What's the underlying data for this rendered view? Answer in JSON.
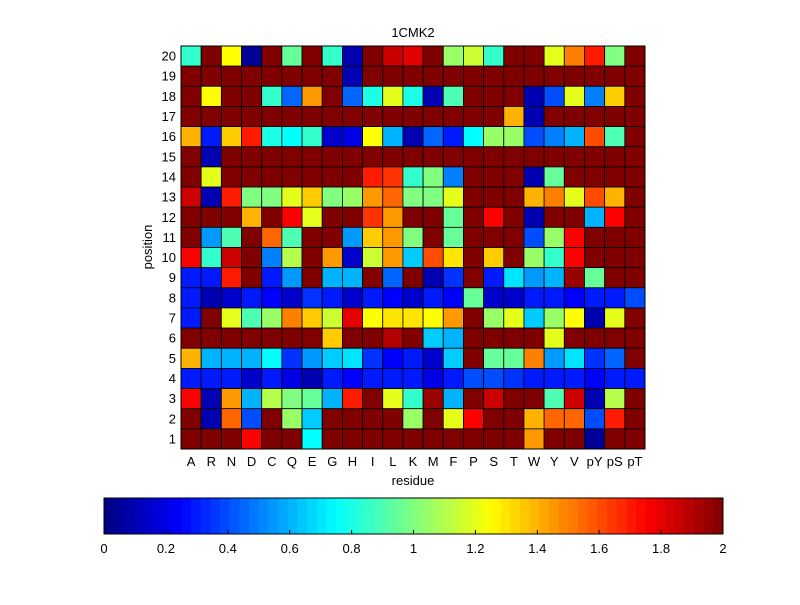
{
  "chart_data": {
    "type": "heatmap",
    "title": "1CMK2",
    "xlabel": "residue",
    "ylabel": "position",
    "x_categories": [
      "A",
      "R",
      "N",
      "D",
      "C",
      "Q",
      "E",
      "G",
      "H",
      "I",
      "L",
      "K",
      "M",
      "F",
      "P",
      "S",
      "T",
      "W",
      "Y",
      "V",
      "pY",
      "pS",
      "pT"
    ],
    "y_categories": [
      20,
      19,
      18,
      17,
      16,
      15,
      14,
      13,
      12,
      11,
      10,
      9,
      8,
      7,
      6,
      5,
      4,
      3,
      2,
      1
    ],
    "colorbar": {
      "range": [
        0,
        2
      ],
      "ticks": [
        "0",
        "0.2",
        "0.4",
        "0.6",
        "0.8",
        "1",
        "1.2",
        "1.4",
        "1.6",
        "1.8",
        "2"
      ],
      "colormap": "jet",
      "orientation": "horizontal"
    },
    "values": [
      [
        0.85,
        2,
        1.25,
        0.05,
        2,
        0.95,
        2,
        0.85,
        0.1,
        2,
        1.85,
        1.8,
        2,
        1.05,
        1.15,
        0.85,
        2,
        2,
        1.2,
        1.5,
        1.7,
        1.0,
        2
      ],
      [
        2,
        2,
        2,
        2,
        2,
        2,
        2,
        2,
        0.1,
        2,
        2,
        2,
        2,
        2,
        2,
        2,
        2,
        2,
        2,
        2,
        2,
        2,
        2
      ],
      [
        2,
        1.25,
        2,
        2,
        0.85,
        0.45,
        1.45,
        2,
        0.45,
        0.8,
        1.2,
        0.8,
        0.1,
        0.9,
        2,
        2,
        2,
        0.1,
        0.4,
        1.2,
        0.5,
        1.35,
        2
      ],
      [
        2,
        2,
        2,
        2,
        2,
        2,
        2,
        2,
        2,
        2,
        2,
        2,
        2,
        2,
        2,
        2,
        1.4,
        0.1,
        2,
        2,
        2,
        2,
        2
      ],
      [
        1.4,
        0.3,
        1.35,
        1.7,
        0.8,
        0.75,
        0.85,
        0.15,
        0.2,
        1.25,
        0.6,
        0.1,
        0.45,
        0.3,
        0.75,
        1.05,
        1.05,
        0.4,
        0.5,
        0.6,
        1.6,
        0.9,
        2
      ],
      [
        2,
        0.1,
        2,
        2,
        2,
        2,
        2,
        2,
        2,
        2,
        2,
        2,
        2,
        2,
        2,
        2,
        2,
        2,
        2,
        2,
        2,
        2,
        2
      ],
      [
        2,
        1.2,
        2,
        2,
        2,
        2,
        2,
        2,
        2,
        1.7,
        1.65,
        0.85,
        1.0,
        0.5,
        2,
        2,
        2,
        0.1,
        0.95,
        2,
        2,
        2,
        2
      ],
      [
        1.85,
        0.1,
        1.7,
        1.0,
        1.0,
        1.2,
        1.35,
        1.0,
        1.05,
        1.45,
        1.55,
        1.0,
        1.0,
        1.2,
        2,
        2,
        2,
        1.4,
        1.5,
        1.2,
        1.6,
        1.4,
        2
      ],
      [
        2,
        2,
        2,
        1.4,
        2,
        1.75,
        1.2,
        2,
        2,
        1.65,
        1.45,
        2,
        2,
        0.95,
        2,
        1.75,
        2,
        0.1,
        2,
        2,
        0.6,
        1.75,
        2
      ],
      [
        2,
        0.55,
        0.9,
        2,
        1.55,
        0.9,
        2,
        2,
        0.55,
        1.35,
        1.45,
        1.0,
        2,
        0.95,
        2,
        2,
        2,
        0.4,
        1.05,
        1.75,
        2,
        2,
        2
      ],
      [
        1.75,
        0.85,
        1.85,
        2,
        0.5,
        1.1,
        2,
        1.45,
        0.15,
        1.15,
        1.45,
        0.65,
        1.6,
        1.3,
        2,
        1.35,
        2,
        1.05,
        0.85,
        1.75,
        2,
        2,
        2
      ],
      [
        0.3,
        0.3,
        1.7,
        2,
        0.3,
        0.55,
        2,
        0.6,
        0.6,
        2,
        0.45,
        2,
        0.1,
        0.35,
        2,
        0.3,
        0.7,
        0.55,
        0.6,
        1.95,
        0.95,
        2,
        2
      ],
      [
        0.3,
        0.1,
        0.15,
        0.3,
        0.25,
        0.15,
        0.35,
        0.3,
        0.15,
        0.3,
        0.25,
        0.15,
        0.3,
        0.25,
        0.95,
        0.15,
        0.15,
        0.3,
        0.3,
        0.25,
        0.3,
        0.3,
        0.4
      ],
      [
        0.3,
        2,
        1.2,
        0.9,
        1.05,
        1.5,
        1.35,
        1.15,
        1.8,
        1.25,
        1.3,
        1.3,
        1.25,
        1.45,
        2,
        1.05,
        1.2,
        0.65,
        1.05,
        1.25,
        0.1,
        1.2,
        2
      ],
      [
        2,
        2,
        2,
        2,
        2,
        2,
        2,
        1.35,
        2,
        2,
        1.9,
        2,
        0.65,
        0.6,
        2,
        2,
        2,
        2,
        1.2,
        2,
        2,
        2,
        2
      ],
      [
        1.4,
        0.6,
        0.6,
        0.6,
        0.75,
        0.35,
        0.55,
        0.65,
        0.7,
        0.35,
        0.25,
        0.3,
        0.15,
        0.65,
        2,
        0.95,
        0.95,
        1.5,
        0.55,
        0.7,
        0.35,
        0.45,
        2
      ],
      [
        0.3,
        0.3,
        0.3,
        0.15,
        0.3,
        0.2,
        0.1,
        0.3,
        0.25,
        0.3,
        0.3,
        0.3,
        0.2,
        0.3,
        0.4,
        0.4,
        0.35,
        0.3,
        0.3,
        0.3,
        0.25,
        0.3,
        0.3
      ],
      [
        1.75,
        0.1,
        1.45,
        0.6,
        1.1,
        1.0,
        0.95,
        0.6,
        1.7,
        2,
        1.2,
        0.85,
        1.95,
        0.6,
        2,
        1.85,
        2,
        2,
        0.9,
        1.85,
        0.1,
        1.1,
        2
      ],
      [
        2,
        0.1,
        1.55,
        0.4,
        2,
        1.05,
        0.65,
        2,
        2,
        2,
        2,
        1.05,
        2,
        1.2,
        1.75,
        2,
        2,
        1.4,
        1.55,
        1.55,
        0.4,
        1.7,
        2
      ],
      [
        2,
        2,
        2,
        1.75,
        2,
        2,
        0.75,
        2,
        2,
        2,
        2,
        2,
        2,
        2,
        2,
        2,
        2,
        1.45,
        2,
        2,
        0.05,
        2,
        2
      ]
    ]
  }
}
